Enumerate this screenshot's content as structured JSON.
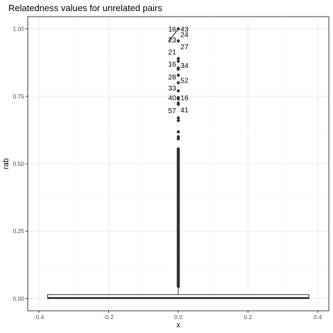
{
  "chart_data": {
    "type": "box",
    "title": "Relatedness values for unrelated pairs",
    "xlabel": "x",
    "ylabel": "rab",
    "xlim": [
      -0.4,
      0.4
    ],
    "ylim": [
      0.0,
      1.0
    ],
    "x_ticks": [
      -0.4,
      -0.2,
      0.0,
      0.2,
      0.4
    ],
    "x_tick_labels": [
      "-0.4",
      "-0.2",
      "0.0",
      "0.2",
      "0.4"
    ],
    "y_ticks": [
      0.0,
      0.25,
      0.5,
      0.75,
      1.0
    ],
    "y_tick_labels": [
      "0.00",
      "0.25",
      "0.50",
      "0.75",
      "1.00"
    ],
    "grid": true,
    "colors": {
      "panel_border": "#333333",
      "grid_major": "#ebebeb",
      "grid_minor": "#f5f5f5",
      "points": "#333333",
      "box": "#333333"
    },
    "box": {
      "x": 0.0,
      "half_width": 0.375,
      "q1": 0.0,
      "median": 0.003,
      "q3": 0.015,
      "whisker_low": 0.0,
      "whisker_high": 0.04
    },
    "outliers": [
      {
        "x": 0,
        "y": 1.0
      },
      {
        "x": 0,
        "y": 0.955
      },
      {
        "x": 0,
        "y": 0.89
      },
      {
        "x": 0,
        "y": 0.88
      },
      {
        "x": 0,
        "y": 0.855
      },
      {
        "x": 0,
        "y": 0.85
      },
      {
        "x": 0,
        "y": 0.828
      },
      {
        "x": 0,
        "y": 0.8
      },
      {
        "x": 0,
        "y": 0.77
      },
      {
        "x": 0,
        "y": 0.745
      },
      {
        "x": 0,
        "y": 0.74
      },
      {
        "x": 0,
        "y": 0.725
      },
      {
        "x": 0,
        "y": 0.72
      },
      {
        "x": 0,
        "y": 0.67
      },
      {
        "x": 0,
        "y": 0.66
      },
      {
        "x": 0,
        "y": 0.618
      },
      {
        "x": 0,
        "y": 0.6
      },
      {
        "x": 0,
        "y": 0.592
      }
    ],
    "outlier_band": {
      "x": 0,
      "from": 0.045,
      "to": 0.555
    },
    "point_labels": [
      {
        "text": "43",
        "y": 1.0,
        "side": "right"
      },
      {
        "text": "16",
        "y": 1.0,
        "side": "left"
      },
      {
        "text": "23",
        "y": 0.96,
        "side": "left"
      },
      {
        "text": "24",
        "y": 0.98,
        "side": "right"
      },
      {
        "text": "27",
        "y": 0.935,
        "side": "right"
      },
      {
        "text": "21",
        "y": 0.915,
        "side": "left"
      },
      {
        "text": "16",
        "y": 0.87,
        "side": "left"
      },
      {
        "text": "34",
        "y": 0.865,
        "side": "right"
      },
      {
        "text": "28",
        "y": 0.822,
        "side": "left"
      },
      {
        "text": "52",
        "y": 0.81,
        "side": "right"
      },
      {
        "text": "33",
        "y": 0.782,
        "side": "left"
      },
      {
        "text": "40",
        "y": 0.745,
        "side": "left"
      },
      {
        "text": "16",
        "y": 0.745,
        "side": "right"
      },
      {
        "text": "57",
        "y": 0.698,
        "side": "left"
      },
      {
        "text": "41",
        "y": 0.7,
        "side": "right"
      }
    ]
  }
}
